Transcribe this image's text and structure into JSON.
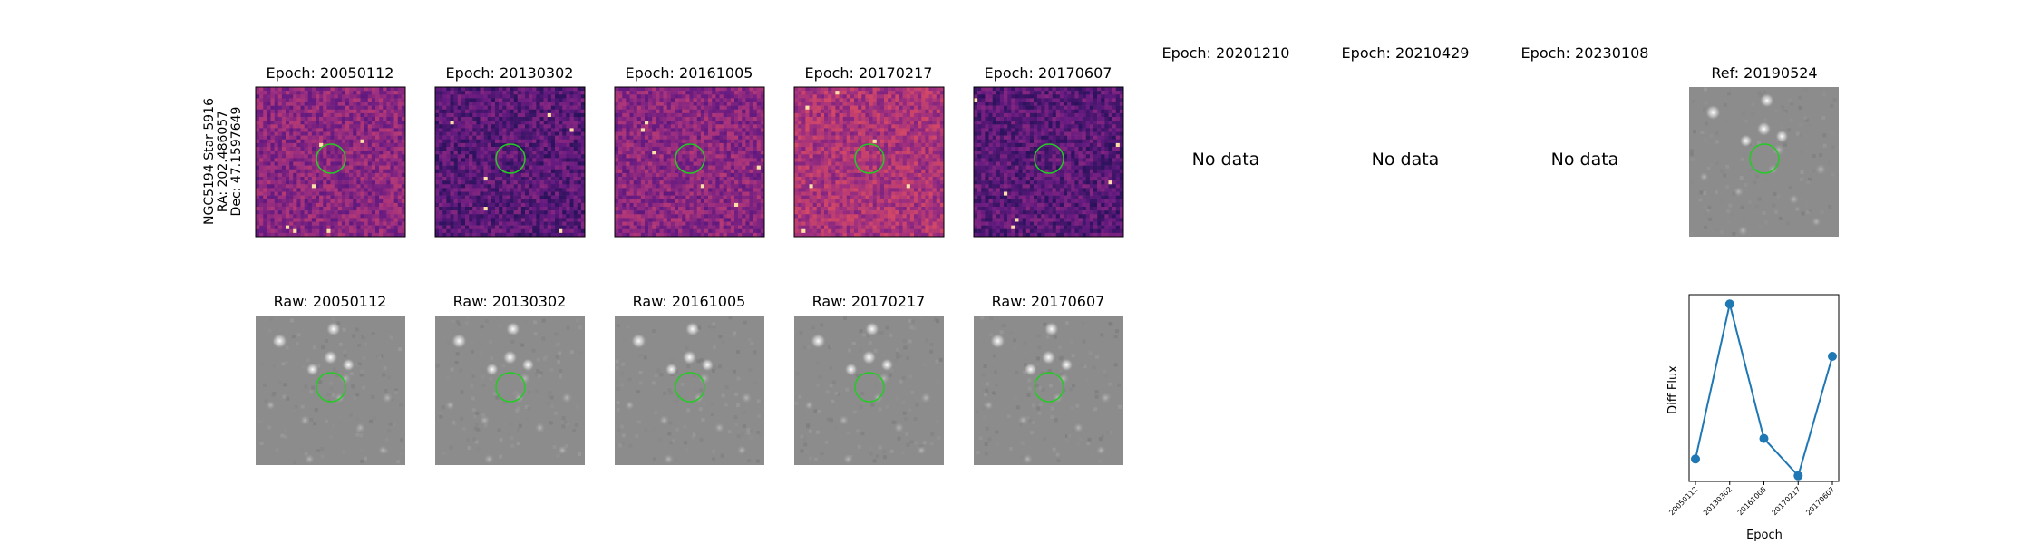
{
  "side_label": {
    "line1": "NGC5194 Star 5916",
    "line2": "RA: 202.486057",
    "line3": "Dec: 47.1597649"
  },
  "diff_panels": [
    {
      "title": "Epoch: 20050112",
      "has_data": true
    },
    {
      "title": "Epoch: 20130302",
      "has_data": true
    },
    {
      "title": "Epoch: 20161005",
      "has_data": true
    },
    {
      "title": "Epoch: 20170217",
      "has_data": true
    },
    {
      "title": "Epoch: 20170607",
      "has_data": true
    },
    {
      "title": "Epoch: 20201210",
      "has_data": false,
      "message": "No data"
    },
    {
      "title": "Epoch: 20210429",
      "has_data": false,
      "message": "No data"
    },
    {
      "title": "Epoch: 20230108",
      "has_data": false,
      "message": "No data"
    }
  ],
  "ref_panel": {
    "title": "Ref: 20190524"
  },
  "raw_panels": [
    {
      "title": "Raw: 20050112"
    },
    {
      "title": "Raw: 20130302"
    },
    {
      "title": "Raw: 20161005"
    },
    {
      "title": "Raw: 20170217"
    },
    {
      "title": "Raw: 20170607"
    }
  ],
  "colors": {
    "aperture": "#22cc22",
    "line": "#1f77b4",
    "magma_dark": "#3b0f70",
    "magma_mid": "#b5367a",
    "magma_light": "#fcfdbf",
    "raw_bg": "#8c8c8c"
  },
  "chart_data": {
    "type": "line",
    "x": [
      "20050112",
      "20130302",
      "20161005",
      "20170217",
      "20170607"
    ],
    "series": [
      {
        "values": [
          0.12,
          0.95,
          0.23,
          0.03,
          0.67
        ]
      }
    ],
    "xlabel": "Epoch",
    "ylabel": "Diff Flux",
    "ylim": [
      0,
      1
    ],
    "y_ticks_shown": false,
    "grid": false
  }
}
